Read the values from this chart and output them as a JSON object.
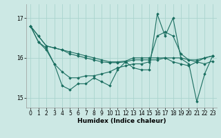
{
  "xlabel": "Humidex (Indice chaleur)",
  "bg_color": "#cce8e4",
  "grid_color": "#aad4ce",
  "line_color": "#1a6e60",
  "xlim": [
    -0.5,
    23.5
  ],
  "ylim": [
    14.75,
    17.35
  ],
  "yticks": [
    15,
    16,
    17
  ],
  "xticks": [
    0,
    1,
    2,
    3,
    4,
    5,
    6,
    7,
    8,
    9,
    10,
    11,
    12,
    13,
    14,
    15,
    16,
    17,
    18,
    19,
    20,
    21,
    22,
    23
  ],
  "series": [
    [
      16.8,
      16.55,
      16.3,
      16.25,
      16.2,
      16.15,
      16.1,
      16.05,
      16.0,
      15.95,
      15.9,
      15.9,
      15.92,
      16.0,
      16.0,
      16.0,
      16.0,
      16.0,
      16.0,
      16.0,
      15.95,
      15.95,
      16.0,
      16.05
    ],
    [
      16.8,
      16.55,
      16.3,
      16.25,
      16.2,
      16.1,
      16.05,
      16.0,
      15.95,
      15.9,
      15.88,
      15.88,
      15.9,
      15.95,
      15.95,
      15.95,
      15.95,
      16.0,
      15.9,
      15.85,
      15.8,
      15.9,
      16.0,
      16.05
    ],
    [
      16.8,
      16.4,
      16.25,
      15.85,
      15.65,
      15.5,
      15.5,
      15.55,
      15.55,
      15.6,
      15.65,
      15.75,
      15.8,
      15.85,
      15.85,
      15.9,
      16.55,
      16.65,
      16.55,
      16.1,
      15.95,
      15.9,
      15.85,
      15.92
    ],
    [
      16.8,
      16.4,
      16.2,
      15.85,
      15.3,
      15.2,
      15.35,
      15.35,
      15.5,
      15.4,
      15.3,
      15.7,
      15.9,
      15.75,
      15.7,
      15.7,
      17.1,
      16.55,
      17.0,
      15.98,
      15.85,
      14.9,
      15.6,
      16.05
    ]
  ]
}
